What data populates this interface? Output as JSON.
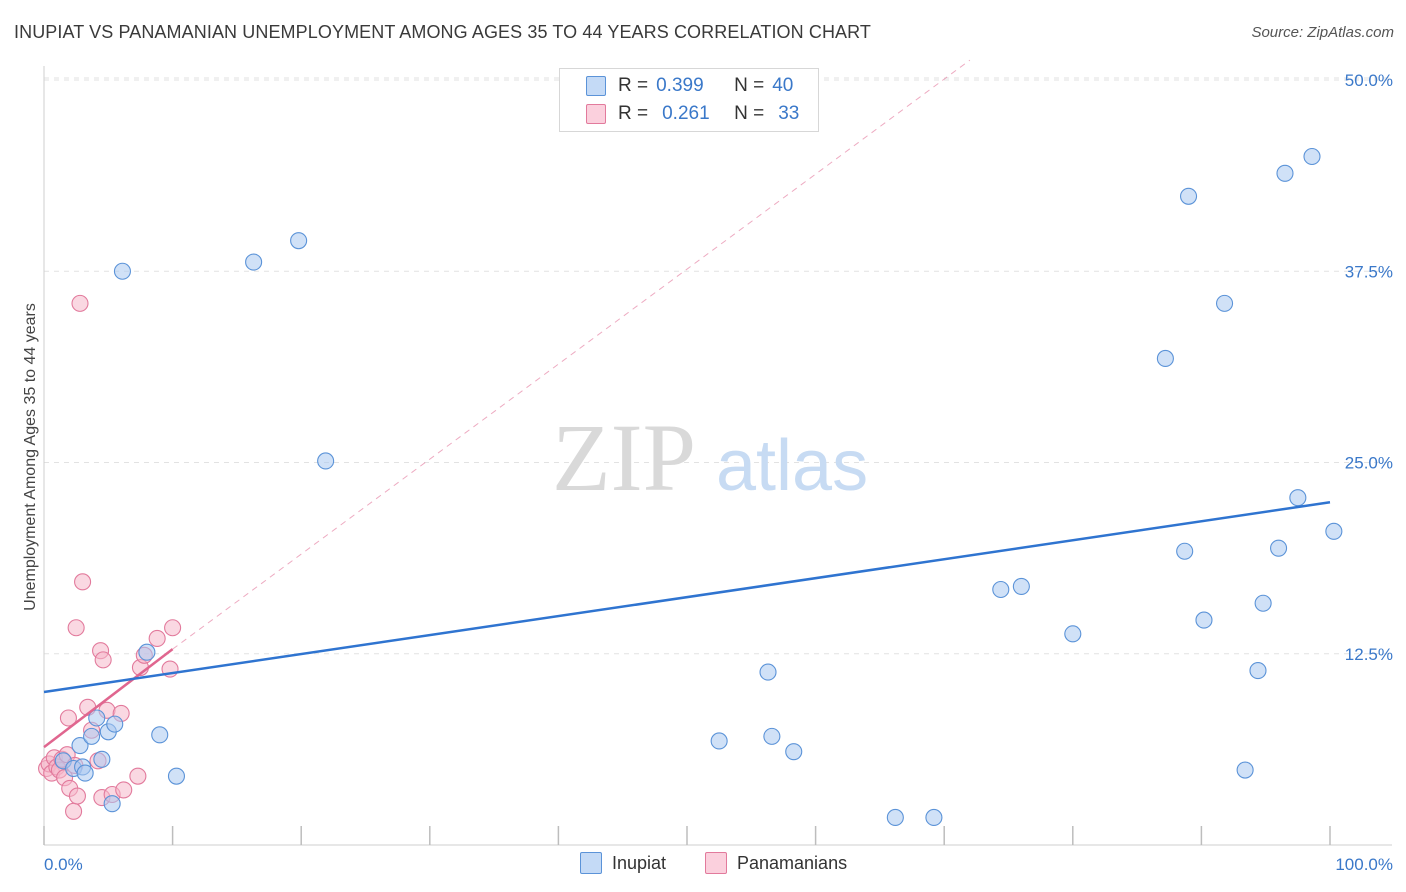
{
  "title": "INUPIAT VS PANAMANIAN UNEMPLOYMENT AMONG AGES 35 TO 44 YEARS CORRELATION CHART",
  "source": "Source: ZipAtlas.com",
  "legend": {
    "rows": [
      {
        "r_label": "R =",
        "r_value": "0.399",
        "n_label": "N =",
        "n_value": "40"
      },
      {
        "r_label": "R =",
        "r_value": "0.261",
        "n_label": "N =",
        "n_value": "33"
      }
    ]
  },
  "bottom_legend": [
    "Inupiat",
    "Panamanians"
  ],
  "watermark": {
    "zip": "ZIP",
    "atlas": "atlas"
  },
  "colors": {
    "inupiat_fill": "#a9c8f0",
    "inupiat_stroke": "#5b93d8",
    "inupiat_line": "#2f74d0",
    "panamanian_fill": "#f6b8cb",
    "panamanian_stroke": "#e27a9c",
    "panamanian_line": "#e0668f",
    "tick_text": "#3a78c9",
    "grid": "#e2e2e2"
  },
  "chart_data": {
    "type": "scatter",
    "xlabel": "",
    "ylabel": "Unemployment Among Ages 35 to 44 years",
    "xlim": [
      0,
      100
    ],
    "ylim": [
      0,
      50
    ],
    "x_tick_labels": [
      {
        "value": 0,
        "label": "0.0%"
      },
      {
        "value": 100,
        "label": "100.0%"
      }
    ],
    "y_tick_labels": [
      {
        "value": 12.5,
        "label": "12.5%"
      },
      {
        "value": 25.0,
        "label": "25.0%"
      },
      {
        "value": 37.5,
        "label": "37.5%"
      },
      {
        "value": 50.0,
        "label": "50.0%"
      }
    ],
    "grid": true,
    "legend_position": "top-center",
    "series": [
      {
        "name": "Inupiat",
        "points": [
          [
            1.5,
            5.5
          ],
          [
            2.3,
            5.0
          ],
          [
            2.8,
            6.5
          ],
          [
            3.0,
            5.1
          ],
          [
            3.2,
            4.7
          ],
          [
            3.7,
            7.1
          ],
          [
            4.1,
            8.3
          ],
          [
            4.5,
            5.6
          ],
          [
            5.0,
            7.4
          ],
          [
            5.5,
            7.9
          ],
          [
            5.3,
            2.7
          ],
          [
            6.1,
            37.5
          ],
          [
            8.0,
            12.6
          ],
          [
            9.0,
            7.2
          ],
          [
            10.3,
            4.5
          ],
          [
            16.3,
            38.1
          ],
          [
            19.8,
            39.5
          ],
          [
            21.9,
            25.1
          ],
          [
            52.5,
            6.8
          ],
          [
            56.3,
            11.3
          ],
          [
            56.6,
            7.1
          ],
          [
            58.3,
            6.1
          ],
          [
            66.2,
            1.8
          ],
          [
            69.2,
            1.8
          ],
          [
            74.4,
            16.7
          ],
          [
            76.0,
            16.9
          ],
          [
            80.0,
            13.8
          ],
          [
            87.2,
            31.8
          ],
          [
            88.7,
            19.2
          ],
          [
            89.0,
            42.4
          ],
          [
            90.2,
            14.7
          ],
          [
            91.8,
            35.4
          ],
          [
            93.4,
            4.9
          ],
          [
            94.4,
            11.4
          ],
          [
            94.8,
            15.8
          ],
          [
            96.0,
            19.4
          ],
          [
            96.5,
            43.9
          ],
          [
            97.5,
            22.7
          ],
          [
            98.6,
            45.0
          ],
          [
            100.3,
            20.5
          ]
        ],
        "trend": {
          "x": [
            0,
            100
          ],
          "y": [
            10.0,
            22.4
          ]
        }
      },
      {
        "name": "Panamanians",
        "points": [
          [
            0.2,
            5.0
          ],
          [
            0.4,
            5.3
          ],
          [
            0.6,
            4.7
          ],
          [
            0.8,
            5.7
          ],
          [
            1.0,
            5.1
          ],
          [
            1.2,
            4.9
          ],
          [
            1.4,
            5.6
          ],
          [
            1.6,
            4.4
          ],
          [
            1.8,
            5.9
          ],
          [
            1.9,
            8.3
          ],
          [
            2.0,
            3.7
          ],
          [
            2.3,
            2.2
          ],
          [
            2.4,
            5.2
          ],
          [
            2.5,
            14.2
          ],
          [
            2.6,
            3.2
          ],
          [
            2.8,
            35.4
          ],
          [
            3.0,
            17.2
          ],
          [
            3.4,
            9.0
          ],
          [
            3.7,
            7.5
          ],
          [
            4.2,
            5.5
          ],
          [
            4.4,
            12.7
          ],
          [
            4.5,
            3.1
          ],
          [
            4.6,
            12.1
          ],
          [
            4.9,
            8.8
          ],
          [
            5.3,
            3.3
          ],
          [
            6.0,
            8.6
          ],
          [
            6.2,
            3.6
          ],
          [
            7.3,
            4.5
          ],
          [
            7.5,
            11.6
          ],
          [
            7.8,
            12.4
          ],
          [
            8.8,
            13.5
          ],
          [
            9.8,
            11.5
          ],
          [
            10.0,
            14.2
          ]
        ],
        "trend": {
          "x": [
            0,
            10
          ],
          "y": [
            6.4,
            12.8
          ]
        },
        "trend_extended": {
          "x": [
            10,
            72
          ],
          "y": [
            12.8,
            51.3
          ]
        }
      }
    ]
  }
}
